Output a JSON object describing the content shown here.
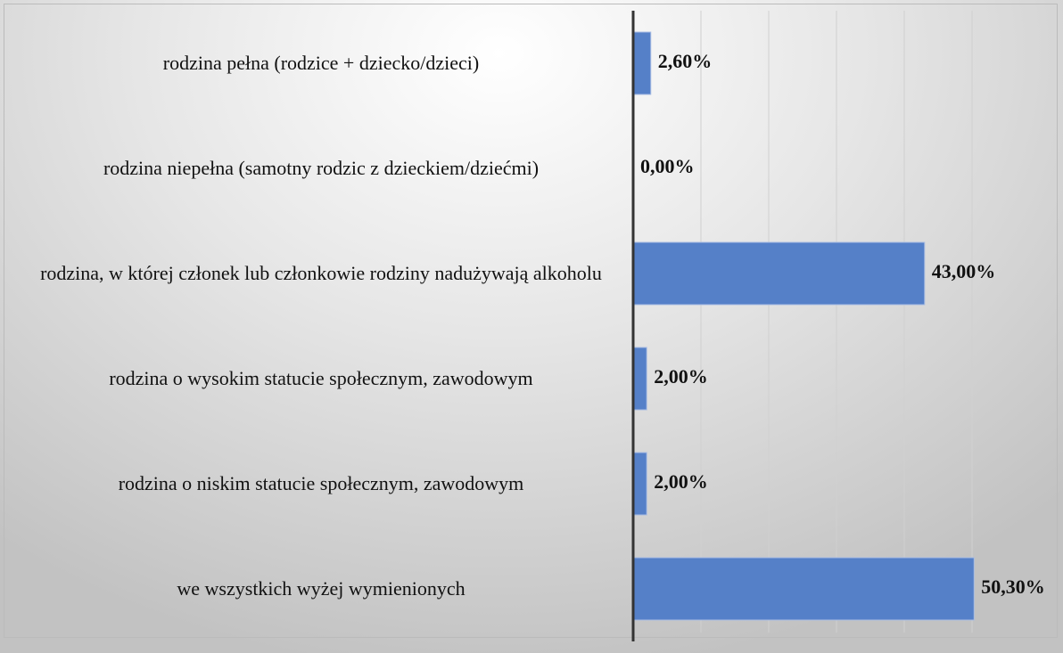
{
  "chart_data": {
    "type": "hbar",
    "categories": [
      "rodzina pełna (rodzice + dziecko/dzieci)",
      "rodzina niepełna (samotny rodzic z dzieckiem/dziećmi)",
      "rodzina, w której członek lub członkowie rodziny nadużywają alkoholu",
      "rodzina o wysokim statucie społecznym, zawodowym",
      "rodzina o niskim statucie społecznym, zawodowym",
      "we wszystkich wyżej wymienionych"
    ],
    "values": [
      2.6,
      0,
      43,
      2,
      2,
      50.3
    ],
    "value_labels": [
      "2,60%",
      "0,00%",
      "43,00%",
      "2,00%",
      "2,00%",
      "50,30%"
    ],
    "color": "#5580c8",
    "xlim": [
      0,
      60
    ],
    "xticks": [
      10,
      20,
      30,
      40,
      50
    ],
    "grid": true
  }
}
